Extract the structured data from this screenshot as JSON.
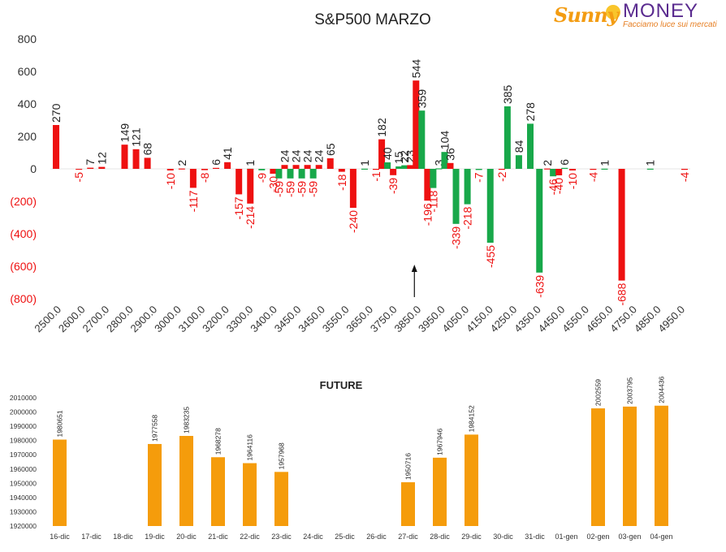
{
  "logo": {
    "brand_part1": "Sunny",
    "brand_part2": "MONEY",
    "tagline": "Facciamo luce sui mercati"
  },
  "colors": {
    "positive_bar": "#ee1111",
    "negative_bar": "#18a84a",
    "negative_label": "#ee1111",
    "future_bar": "#f59c0b",
    "axis_text": "#333333"
  },
  "chart_data": [
    {
      "type": "bar",
      "title": "S&P500 MARZO",
      "ylim": [
        -800,
        800
      ],
      "y_ticks": [
        "800",
        "600",
        "400",
        "200",
        "0",
        "(200)",
        "(400)",
        "(600)",
        "(800)"
      ],
      "x_tick_labels": [
        "2500.0",
        "2600.0",
        "2700.0",
        "2800.0",
        "2900.0",
        "3000.0",
        "3100.0",
        "3200.0",
        "3300.0",
        "3400.0",
        "3450.0",
        "3450.0",
        "3550.0",
        "3650.0",
        "3750.0",
        "3850.0",
        "3950.0",
        "4050.0",
        "4150.0",
        "4250.0",
        "4350.0",
        "4450.0",
        "4550.0",
        "4650.0",
        "4750.0",
        "4850.0",
        "4950.0"
      ],
      "points": [
        {
          "slot": 0,
          "value": 270,
          "label": "270",
          "color": "red"
        },
        {
          "slot": 2,
          "value": -5,
          "label": "-5",
          "color": "red"
        },
        {
          "slot": 3,
          "value": 7,
          "label": "7",
          "color": "red"
        },
        {
          "slot": 4,
          "value": 12,
          "label": "12",
          "color": "red"
        },
        {
          "slot": 6,
          "value": 149,
          "label": "149",
          "color": "red"
        },
        {
          "slot": 7,
          "value": 121,
          "label": "121",
          "color": "red"
        },
        {
          "slot": 8,
          "value": 68,
          "label": "68",
          "color": "red"
        },
        {
          "slot": 10,
          "value": -10,
          "label": "-10",
          "color": "red"
        },
        {
          "slot": 11,
          "value": 2,
          "label": "2",
          "color": "red"
        },
        {
          "slot": 12,
          "value": -117,
          "label": "-117",
          "color": "red"
        },
        {
          "slot": 13,
          "value": -8,
          "label": "-8",
          "color": "red"
        },
        {
          "slot": 14,
          "value": 6,
          "label": "6",
          "color": "red"
        },
        {
          "slot": 15,
          "value": 41,
          "label": "41",
          "color": "red"
        },
        {
          "slot": 16,
          "value": -157,
          "label": "-157",
          "color": "red"
        },
        {
          "slot": 17,
          "value": 1,
          "label": "1",
          "color": "green"
        },
        {
          "slot": 17,
          "value": -214,
          "label": "-214",
          "color": "red"
        },
        {
          "slot": 18,
          "value": -9,
          "label": "-9",
          "color": "green"
        },
        {
          "slot": 19,
          "value": -30,
          "label": "-30",
          "color": "red"
        },
        {
          "slot": 19.5,
          "value": -59,
          "label": "-59",
          "color": "green"
        },
        {
          "slot": 20,
          "value": 24,
          "label": "24",
          "color": "red"
        },
        {
          "slot": 20.5,
          "value": -59,
          "label": "-59",
          "color": "green"
        },
        {
          "slot": 21,
          "value": 24,
          "label": "24",
          "color": "red"
        },
        {
          "slot": 21.5,
          "value": -59,
          "label": "-59",
          "color": "green"
        },
        {
          "slot": 22,
          "value": 24,
          "label": "24",
          "color": "red"
        },
        {
          "slot": 22.5,
          "value": -59,
          "label": "-59",
          "color": "green"
        },
        {
          "slot": 23,
          "value": 24,
          "label": "24",
          "color": "red"
        },
        {
          "slot": 24,
          "value": 65,
          "label": "65",
          "color": "red"
        },
        {
          "slot": 25,
          "value": -18,
          "label": "-18",
          "color": "red"
        },
        {
          "slot": 26,
          "value": -240,
          "label": "-240",
          "color": "red"
        },
        {
          "slot": 27,
          "value": 1,
          "label": "1",
          "color": "green"
        },
        {
          "slot": 28,
          "value": -1,
          "label": "-1",
          "color": "red"
        },
        {
          "slot": 28.5,
          "value": 182,
          "label": "182",
          "color": "red"
        },
        {
          "slot": 29,
          "value": 40,
          "label": "40",
          "color": "green"
        },
        {
          "slot": 29.5,
          "value": -39,
          "label": "-39",
          "color": "red"
        },
        {
          "slot": 30,
          "value": 15,
          "label": "15",
          "color": "green"
        },
        {
          "slot": 30.5,
          "value": 22,
          "label": "22",
          "color": "green"
        },
        {
          "slot": 31,
          "value": 23,
          "label": "23",
          "color": "red"
        },
        {
          "slot": 31.5,
          "value": 544,
          "label": "544",
          "color": "red"
        },
        {
          "slot": 32,
          "value": 359,
          "label": "359",
          "color": "green"
        },
        {
          "slot": 32.5,
          "value": -196,
          "label": "-196",
          "color": "red"
        },
        {
          "slot": 33,
          "value": -118,
          "label": "-118",
          "color": "green"
        },
        {
          "slot": 33.5,
          "value": 3,
          "label": "3",
          "color": "green"
        },
        {
          "slot": 34,
          "value": 104,
          "label": "104",
          "color": "green"
        },
        {
          "slot": 34.5,
          "value": 36,
          "label": "36",
          "color": "red"
        },
        {
          "slot": 35,
          "value": -339,
          "label": "-339",
          "color": "green"
        },
        {
          "slot": 36,
          "value": -218,
          "label": "-218",
          "color": "green"
        },
        {
          "slot": 37,
          "value": -7,
          "label": "-7",
          "color": "green"
        },
        {
          "slot": 38,
          "value": -455,
          "label": "-455",
          "color": "green"
        },
        {
          "slot": 39,
          "value": -2,
          "label": "-2",
          "color": "red"
        },
        {
          "slot": 39.5,
          "value": 385,
          "label": "385",
          "color": "green"
        },
        {
          "slot": 40.5,
          "value": 84,
          "label": "84",
          "color": "green"
        },
        {
          "slot": 41.5,
          "value": 278,
          "label": "278",
          "color": "green"
        },
        {
          "slot": 42.3,
          "value": -639,
          "label": "-639",
          "color": "green"
        },
        {
          "slot": 43,
          "value": 2,
          "label": "2",
          "color": "red"
        },
        {
          "slot": 43.5,
          "value": -46,
          "label": "-46",
          "color": "green"
        },
        {
          "slot": 44,
          "value": -40,
          "label": "-40",
          "color": "red"
        },
        {
          "slot": 44.5,
          "value": 6,
          "label": "6",
          "color": "green"
        },
        {
          "slot": 45.2,
          "value": -10,
          "label": "-10",
          "color": "red"
        },
        {
          "slot": 47,
          "value": -4,
          "label": "-4",
          "color": "red"
        },
        {
          "slot": 48,
          "value": 1,
          "label": "1",
          "color": "green"
        },
        {
          "slot": 49.5,
          "value": -688,
          "label": "-688",
          "color": "red"
        },
        {
          "slot": 52,
          "value": 1,
          "label": "1",
          "color": "green"
        },
        {
          "slot": 55,
          "value": -4,
          "label": "-4",
          "color": "red"
        }
      ],
      "marker_arrow_slot": 31.5
    },
    {
      "type": "bar",
      "title": "FUTURE",
      "ylim": [
        1920000,
        2010000
      ],
      "y_ticks": [
        "2010000",
        "2000000",
        "1990000",
        "1980000",
        "1970000",
        "1960000",
        "1950000",
        "1940000",
        "1930000",
        "1920000"
      ],
      "categories": [
        "16-dic",
        "17-dic",
        "18-dic",
        "19-dic",
        "20-dic",
        "21-dic",
        "22-dic",
        "23-dic",
        "24-dic",
        "25-dic",
        "26-dic",
        "27-dic",
        "28-dic",
        "29-dic",
        "30-dic",
        "31-dic",
        "01-gen",
        "02-gen",
        "03-gen",
        "04-gen"
      ],
      "values": [
        1980651,
        null,
        null,
        1977558,
        1983235,
        1968278,
        1964116,
        1957968,
        null,
        null,
        null,
        1950716,
        1967946,
        1984152,
        null,
        null,
        null,
        2002559,
        2003795,
        2004436
      ],
      "labels": [
        "1980651",
        "",
        "",
        "1977558",
        "1983235",
        "1968278",
        "1964116",
        "1957968",
        "",
        "",
        "",
        "1950716",
        "1967946",
        "1984152",
        "",
        "",
        "",
        "2002559",
        "2003795",
        "2004436"
      ]
    }
  ]
}
